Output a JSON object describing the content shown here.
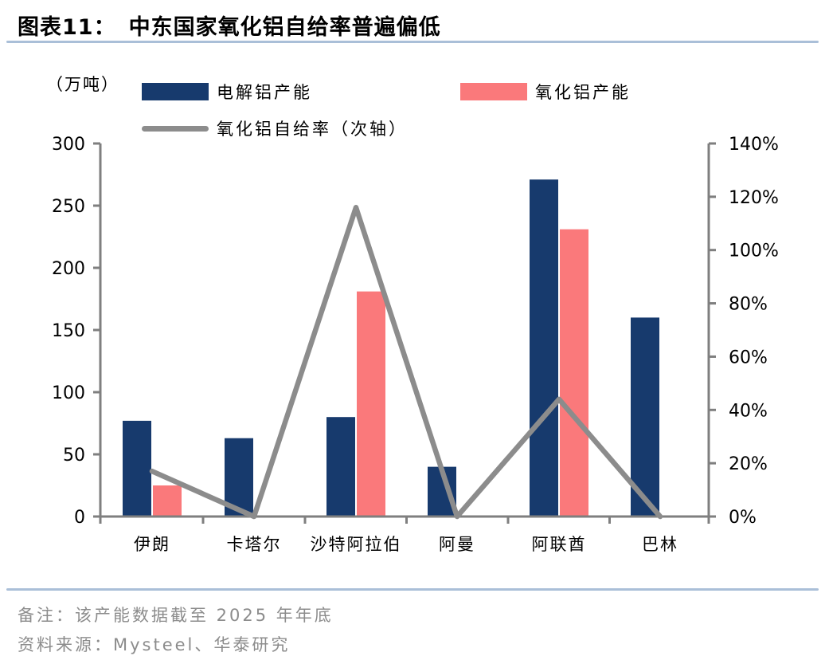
{
  "header": {
    "figure_label": "图表11：",
    "title": "中东国家氧化铝自给率普遍偏低"
  },
  "legend": {
    "items": [
      {
        "label": "电解铝产能",
        "swatch": "box",
        "color": "#173A6D"
      },
      {
        "label": "氧化铝产能",
        "swatch": "box",
        "color": "#FA797B"
      },
      {
        "label": "氧化铝自给率（次轴）",
        "swatch": "line",
        "color": "#8C8C8C"
      }
    ]
  },
  "chart_data": {
    "type": "bar",
    "subtype": "grouped bars with line on secondary axis",
    "title": "中东国家氧化铝自给率普遍偏低",
    "categories": [
      "伊朗",
      "卡塔尔",
      "沙特阿拉伯",
      "阿曼",
      "阿联酋",
      "巴林"
    ],
    "series": [
      {
        "name": "电解铝产能",
        "type": "bar",
        "axis": "left",
        "color": "#173A6D",
        "values": [
          77,
          63,
          80,
          40,
          271,
          160
        ]
      },
      {
        "name": "氧化铝产能",
        "type": "bar",
        "axis": "left",
        "color": "#FA797B",
        "values": [
          25,
          0,
          181,
          0,
          231,
          0
        ]
      },
      {
        "name": "氧化铝自给率（次轴）",
        "type": "line",
        "axis": "right",
        "color": "#8C8C8C",
        "values_pct": [
          17,
          0,
          116,
          0,
          44,
          0
        ]
      }
    ],
    "left_axis": {
      "unit_label": "（万吨）",
      "ticks": [
        0,
        50,
        100,
        150,
        200,
        250,
        300
      ],
      "range": [
        0,
        300
      ]
    },
    "right_axis": {
      "tick_labels": [
        "0%",
        "20%",
        "40%",
        "60%",
        "80%",
        "100%",
        "120%",
        "140%"
      ],
      "ticks_pct": [
        0,
        20,
        40,
        60,
        80,
        100,
        120,
        140
      ],
      "range_pct": [
        0,
        140
      ]
    },
    "grid": false,
    "legend_position": "top-left"
  },
  "footer": {
    "note": "备注：该产能数据截至 2025 年年底",
    "source": "资料来源：Mysteel、华泰研究"
  },
  "colors": {
    "bar_navy": "#173A6D",
    "bar_coral": "#FA797B",
    "line_gray": "#8C8C8C",
    "axis_gray": "#7F7F7F",
    "divider_blue": "#AABFD8",
    "footnote_gray": "#8C8C8C",
    "text_black": "#000000"
  }
}
